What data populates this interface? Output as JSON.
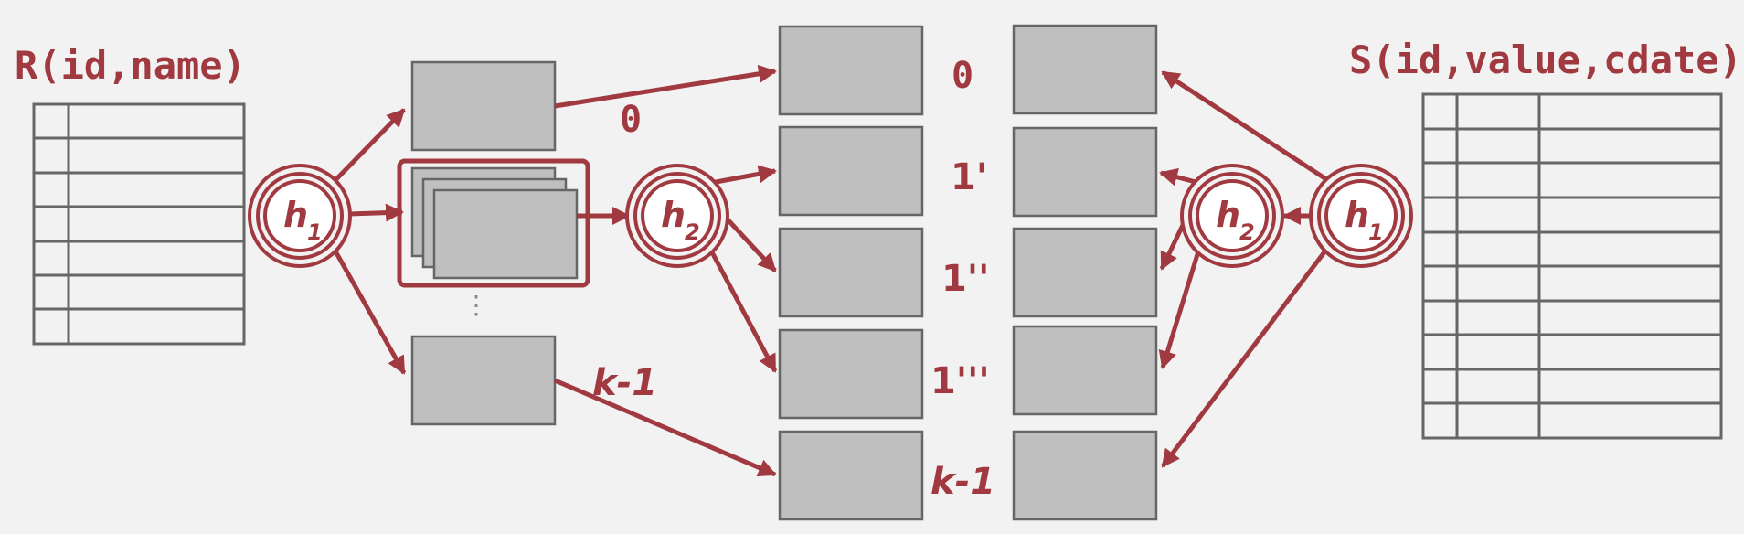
{
  "colors": {
    "accent": "#a13a40",
    "box_fill": "#bfbfbf",
    "box_stroke": "#666666",
    "background": "#f2f2f2"
  },
  "relations": {
    "r": {
      "label": "R(id,name)"
    },
    "s": {
      "label": "S(id,value,cdate)"
    }
  },
  "hash_functions": {
    "h1": {
      "base": "h",
      "sub": "1"
    },
    "h2": {
      "base": "h",
      "sub": "2"
    }
  },
  "partition_labels": {
    "left_zero": "0",
    "left_last": "k-1",
    "mid_zero": "0",
    "mid_one_a": "1'",
    "mid_one_b": "1''",
    "mid_one_c": "1'''",
    "mid_last": "k-1"
  },
  "ellipsis": "⋮"
}
